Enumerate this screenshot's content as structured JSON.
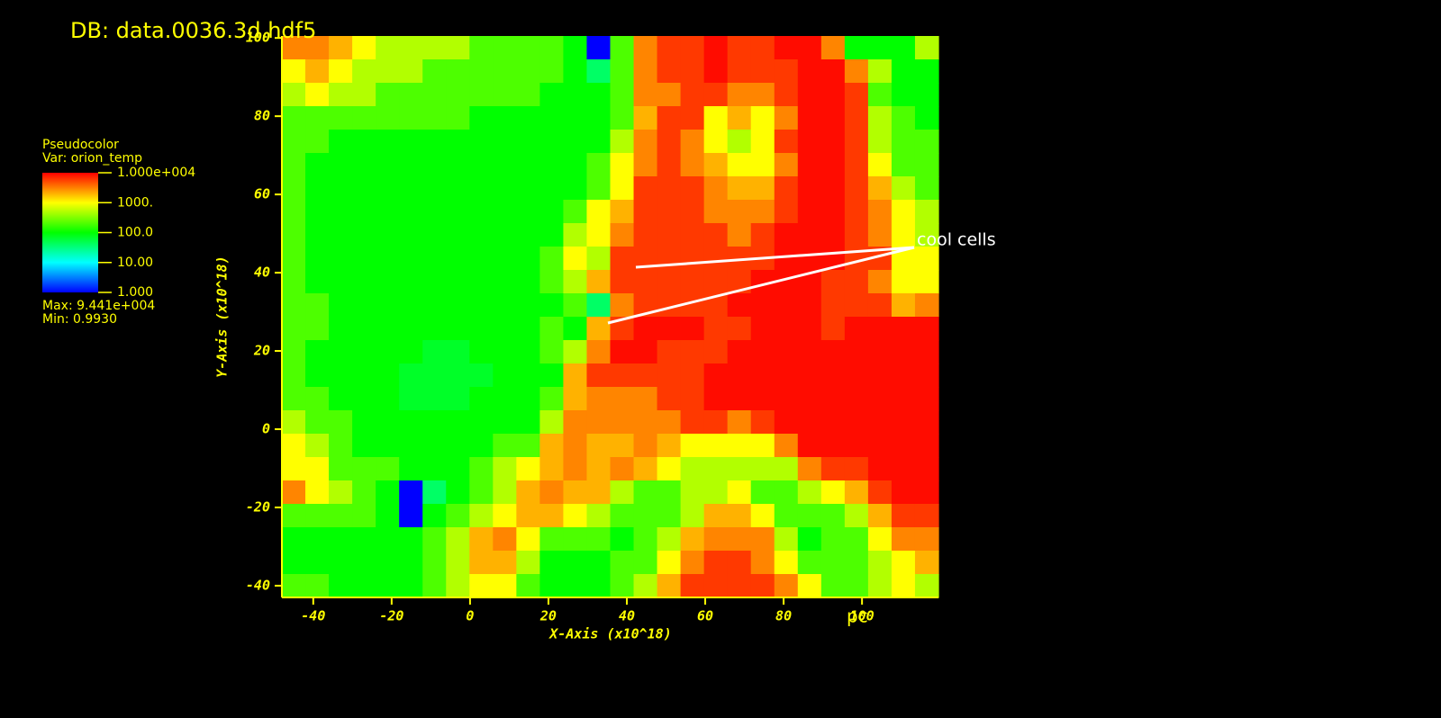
{
  "chart_data": {
    "type": "heatmap",
    "title": "DB: data.0036.3d.hdf5",
    "x_label": "X-Axis (x10^18)",
    "y_label": "Y-Axis (x10^18)",
    "unit_label": "pc",
    "annotation": "cool cells",
    "xlim": [
      -48,
      119.5
    ],
    "ylim": [
      -43,
      100.5
    ],
    "xticks": [
      -40,
      -20,
      0,
      20,
      40,
      60,
      80,
      100
    ],
    "yticks": [
      -40,
      -20,
      0,
      20,
      40,
      60,
      80,
      100
    ],
    "color_log_scale": true,
    "legend": {
      "title": "Pseudocolor",
      "variable": "Var: orion_temp",
      "clim": [
        1,
        10000
      ],
      "ticks": [
        {
          "value": 10000,
          "label": "1.000e+004"
        },
        {
          "value": 1000,
          "label": "1000."
        },
        {
          "value": 100,
          "label": "100.0"
        },
        {
          "value": 10,
          "label": "10.00"
        },
        {
          "value": 1,
          "label": "1.000"
        }
      ],
      "max": "Max: 9.441e+004",
      "min": "Min: 0.9930"
    },
    "values": [
      [
        3000,
        3000,
        2000,
        1000,
        500,
        500,
        500,
        500,
        200,
        200,
        200,
        200,
        100,
        1,
        200,
        3000,
        6000,
        6000,
        9000,
        6000,
        6000,
        9000,
        9000,
        3000,
        100,
        100,
        100,
        500
      ],
      [
        1000,
        2000,
        1000,
        500,
        500,
        500,
        200,
        200,
        200,
        200,
        200,
        200,
        100,
        40,
        200,
        3000,
        6000,
        6000,
        9000,
        6000,
        6000,
        6000,
        9000,
        9000,
        3000,
        500,
        100,
        100
      ],
      [
        500,
        1000,
        500,
        500,
        200,
        200,
        200,
        200,
        200,
        200,
        200,
        100,
        100,
        100,
        200,
        3000,
        3000,
        6000,
        6000,
        3000,
        3000,
        6000,
        9000,
        9000,
        6000,
        200,
        100,
        100
      ],
      [
        200,
        200,
        200,
        200,
        200,
        200,
        200,
        200,
        100,
        100,
        100,
        100,
        100,
        100,
        200,
        2000,
        6000,
        6000,
        1000,
        2000,
        1000,
        3000,
        9000,
        9000,
        6000,
        500,
        200,
        100
      ],
      [
        200,
        200,
        100,
        100,
        100,
        100,
        100,
        100,
        100,
        100,
        100,
        100,
        100,
        100,
        500,
        3000,
        6000,
        3000,
        1000,
        500,
        1000,
        6000,
        9000,
        9000,
        6000,
        500,
        200,
        200
      ],
      [
        200,
        100,
        100,
        100,
        100,
        100,
        100,
        100,
        100,
        100,
        100,
        100,
        100,
        200,
        1000,
        3000,
        6000,
        3000,
        2000,
        1000,
        1000,
        3000,
        9000,
        9000,
        6000,
        1000,
        200,
        200
      ],
      [
        200,
        100,
        100,
        100,
        100,
        100,
        100,
        100,
        100,
        100,
        100,
        100,
        100,
        200,
        1000,
        6000,
        6000,
        6000,
        3000,
        2000,
        2000,
        6000,
        9000,
        9000,
        6000,
        2000,
        500,
        200
      ],
      [
        200,
        100,
        100,
        100,
        100,
        100,
        100,
        100,
        100,
        100,
        100,
        100,
        200,
        1000,
        2000,
        6000,
        6000,
        6000,
        3000,
        3000,
        3000,
        6000,
        9000,
        9000,
        6000,
        3000,
        1000,
        500
      ],
      [
        200,
        100,
        100,
        100,
        100,
        100,
        100,
        100,
        100,
        100,
        100,
        100,
        500,
        1000,
        3000,
        6000,
        6000,
        6000,
        6000,
        3000,
        6000,
        9000,
        9000,
        9000,
        6000,
        3000,
        1000,
        500
      ],
      [
        200,
        100,
        100,
        100,
        100,
        100,
        100,
        100,
        100,
        100,
        100,
        200,
        1000,
        500,
        6000,
        6000,
        6000,
        6000,
        6000,
        6000,
        6000,
        9000,
        9000,
        9000,
        6000,
        6000,
        1000,
        1000
      ],
      [
        200,
        100,
        100,
        100,
        100,
        100,
        100,
        100,
        100,
        100,
        100,
        200,
        500,
        2000,
        6000,
        6000,
        6000,
        6000,
        6000,
        6000,
        9000,
        9000,
        9000,
        6000,
        6000,
        3000,
        1000,
        1000
      ],
      [
        200,
        200,
        100,
        100,
        100,
        100,
        100,
        100,
        100,
        100,
        100,
        100,
        200,
        40,
        3000,
        6000,
        6000,
        6000,
        6000,
        9000,
        9000,
        9000,
        9000,
        6000,
        6000,
        6000,
        2000,
        3000
      ],
      [
        200,
        200,
        100,
        100,
        100,
        100,
        100,
        100,
        100,
        100,
        100,
        200,
        100,
        2000,
        6000,
        9000,
        9000,
        9000,
        6000,
        6000,
        9000,
        9000,
        9000,
        6000,
        9000,
        9000,
        9000,
        9000
      ],
      [
        200,
        100,
        100,
        100,
        100,
        100,
        70,
        70,
        100,
        100,
        100,
        200,
        500,
        3000,
        9000,
        9000,
        6000,
        6000,
        6000,
        9000,
        9000,
        9000,
        9000,
        9000,
        9000,
        9000,
        9000,
        9000
      ],
      [
        200,
        100,
        100,
        100,
        100,
        70,
        70,
        70,
        70,
        100,
        100,
        100,
        2000,
        6000,
        6000,
        6000,
        6000,
        6000,
        9000,
        9000,
        9000,
        9000,
        9000,
        9000,
        9000,
        9000,
        9000,
        9000
      ],
      [
        200,
        200,
        100,
        100,
        100,
        70,
        70,
        70,
        100,
        100,
        100,
        200,
        2000,
        3000,
        3000,
        3000,
        6000,
        6000,
        9000,
        9000,
        9000,
        9000,
        9000,
        9000,
        9000,
        9000,
        9000,
        9000
      ],
      [
        500,
        200,
        200,
        100,
        100,
        100,
        100,
        100,
        100,
        100,
        100,
        500,
        3000,
        3000,
        3000,
        3000,
        3000,
        6000,
        6000,
        3000,
        6000,
        9000,
        9000,
        9000,
        9000,
        9000,
        9000,
        9000
      ],
      [
        1000,
        500,
        200,
        100,
        100,
        100,
        100,
        100,
        100,
        200,
        200,
        2000,
        3000,
        2000,
        2000,
        3000,
        2000,
        1000,
        1000,
        1000,
        1000,
        3000,
        9000,
        9000,
        9000,
        9000,
        9000,
        9000
      ],
      [
        1000,
        1000,
        200,
        200,
        200,
        100,
        100,
        100,
        200,
        500,
        1000,
        2000,
        3000,
        2000,
        3000,
        2000,
        1000,
        500,
        500,
        500,
        500,
        500,
        3000,
        6000,
        6000,
        9000,
        9000,
        9000
      ],
      [
        3000,
        1000,
        500,
        200,
        100,
        1,
        40,
        100,
        200,
        500,
        2000,
        3000,
        2000,
        2000,
        500,
        200,
        200,
        500,
        500,
        1000,
        200,
        200,
        500,
        1000,
        2000,
        6000,
        9000,
        9000
      ],
      [
        200,
        200,
        200,
        200,
        100,
        1,
        100,
        200,
        500,
        1000,
        2000,
        2000,
        1000,
        500,
        200,
        200,
        200,
        500,
        2000,
        2000,
        1000,
        200,
        200,
        200,
        500,
        2000,
        6000,
        6000
      ],
      [
        100,
        100,
        100,
        100,
        100,
        100,
        200,
        500,
        2000,
        3000,
        1000,
        200,
        200,
        200,
        100,
        200,
        500,
        2000,
        3000,
        3000,
        3000,
        500,
        100,
        200,
        200,
        1000,
        3000,
        3000
      ],
      [
        100,
        100,
        100,
        100,
        100,
        100,
        200,
        500,
        2000,
        2000,
        500,
        100,
        100,
        100,
        200,
        200,
        1000,
        3000,
        6000,
        6000,
        3000,
        1000,
        200,
        200,
        200,
        500,
        1000,
        2000
      ],
      [
        200,
        200,
        100,
        100,
        100,
        100,
        200,
        500,
        1000,
        1000,
        200,
        100,
        100,
        100,
        200,
        500,
        2000,
        6000,
        6000,
        6000,
        6000,
        3000,
        1000,
        200,
        200,
        500,
        1000,
        500
      ]
    ]
  }
}
